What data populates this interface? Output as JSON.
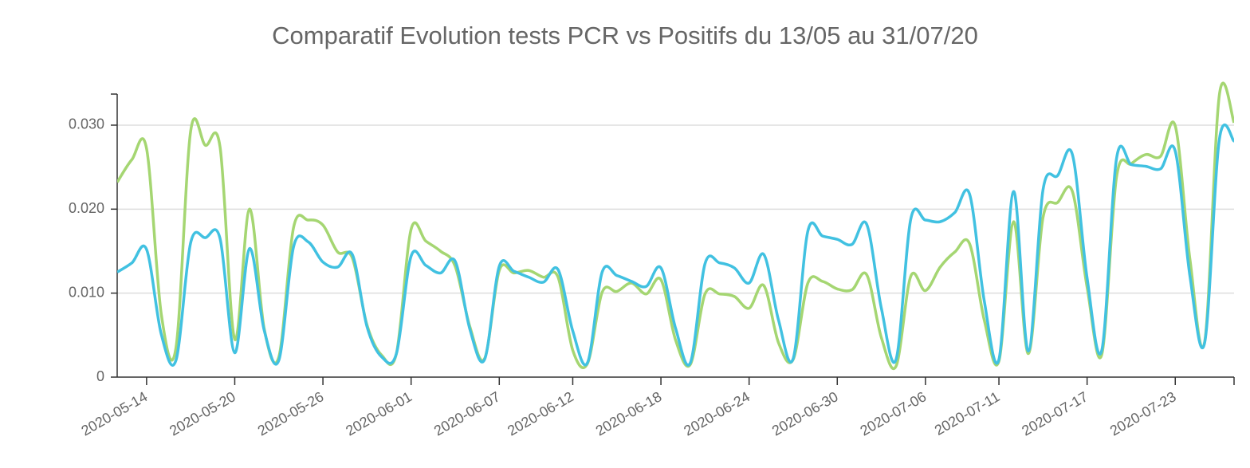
{
  "chart_data": {
    "type": "line",
    "title": "Comparatif Evolution tests PCR vs Positifs du 13/05 au 31/07/20",
    "x": [
      "2020-05-12",
      "2020-05-13",
      "2020-05-14",
      "2020-05-15",
      "2020-05-16",
      "2020-05-17",
      "2020-05-18",
      "2020-05-19",
      "2020-05-20",
      "2020-05-21",
      "2020-05-22",
      "2020-05-23",
      "2020-05-24",
      "2020-05-25",
      "2020-05-26",
      "2020-05-27",
      "2020-05-28",
      "2020-05-29",
      "2020-05-30",
      "2020-05-31",
      "2020-06-01",
      "2020-06-02",
      "2020-06-03",
      "2020-06-04",
      "2020-06-05",
      "2020-06-06",
      "2020-06-07",
      "2020-06-08",
      "2020-06-09",
      "2020-06-10",
      "2020-06-11",
      "2020-06-12",
      "2020-06-13",
      "2020-06-14",
      "2020-06-15",
      "2020-06-16",
      "2020-06-17",
      "2020-06-18",
      "2020-06-19",
      "2020-06-20",
      "2020-06-21",
      "2020-06-22",
      "2020-06-23",
      "2020-06-24",
      "2020-06-25",
      "2020-06-26",
      "2020-06-27",
      "2020-06-28",
      "2020-06-29",
      "2020-06-30",
      "2020-07-01",
      "2020-07-02",
      "2020-07-03",
      "2020-07-04",
      "2020-07-05",
      "2020-07-06",
      "2020-07-07",
      "2020-07-08",
      "2020-07-09",
      "2020-07-10",
      "2020-07-11",
      "2020-07-12",
      "2020-07-13",
      "2020-07-14",
      "2020-07-15",
      "2020-07-16",
      "2020-07-17",
      "2020-07-18",
      "2020-07-19",
      "2020-07-20",
      "2020-07-21",
      "2020-07-22",
      "2020-07-23",
      "2020-07-24",
      "2020-07-25",
      "2020-07-26",
      "2020-07-27"
    ],
    "series": [
      {
        "color": "#a5d672",
        "values": [
          0.0232,
          0.0259,
          0.0272,
          0.0075,
          0.0035,
          0.0293,
          0.0276,
          0.0274,
          0.0045,
          0.02,
          0.0058,
          0.0024,
          0.0178,
          0.0187,
          0.0181,
          0.0149,
          0.0142,
          0.0062,
          0.0026,
          0.0028,
          0.0176,
          0.0162,
          0.015,
          0.0132,
          0.006,
          0.0022,
          0.0127,
          0.0124,
          0.0127,
          0.0119,
          0.0119,
          0.0032,
          0.0016,
          0.0101,
          0.0102,
          0.0112,
          0.0099,
          0.0116,
          0.0044,
          0.0015,
          0.0099,
          0.0099,
          0.0096,
          0.0082,
          0.0109,
          0.0041,
          0.0021,
          0.0112,
          0.0114,
          0.0105,
          0.0104,
          0.0122,
          0.0047,
          0.0013,
          0.012,
          0.0103,
          0.0131,
          0.0149,
          0.0159,
          0.0068,
          0.0019,
          0.0185,
          0.0028,
          0.019,
          0.0208,
          0.0221,
          0.0107,
          0.0027,
          0.0238,
          0.0254,
          0.0265,
          0.0263,
          0.0299,
          0.014,
          0.0042,
          0.0336,
          0.0303
        ]
      },
      {
        "color": "#41c1e1",
        "values": [
          0.0125,
          0.0136,
          0.0152,
          0.0051,
          0.002,
          0.016,
          0.0166,
          0.0165,
          0.0029,
          0.0153,
          0.0056,
          0.002,
          0.0155,
          0.0161,
          0.0137,
          0.0131,
          0.0146,
          0.006,
          0.0024,
          0.0028,
          0.0144,
          0.0133,
          0.0124,
          0.0138,
          0.0057,
          0.0021,
          0.0132,
          0.0126,
          0.0119,
          0.0113,
          0.0128,
          0.0055,
          0.0017,
          0.0125,
          0.0121,
          0.0114,
          0.0108,
          0.013,
          0.0058,
          0.0017,
          0.0135,
          0.0136,
          0.013,
          0.0112,
          0.0146,
          0.0068,
          0.0022,
          0.0174,
          0.0168,
          0.0164,
          0.0158,
          0.0182,
          0.0082,
          0.0021,
          0.0188,
          0.0187,
          0.0185,
          0.0196,
          0.0218,
          0.0091,
          0.0021,
          0.0221,
          0.0031,
          0.0223,
          0.024,
          0.0265,
          0.0118,
          0.0032,
          0.026,
          0.0253,
          0.0251,
          0.0248,
          0.0269,
          0.012,
          0.0041,
          0.0283,
          0.0281
        ]
      }
    ],
    "xlim": [
      "2020-05-12",
      "2020-07-27"
    ],
    "xticks": [
      "2020-05-14",
      "2020-05-20",
      "2020-05-26",
      "2020-06-01",
      "2020-06-07",
      "2020-06-12",
      "2020-06-18",
      "2020-06-24",
      "2020-06-30",
      "2020-07-06",
      "2020-07-11",
      "2020-07-17",
      "2020-07-23"
    ],
    "ylim": [
      0,
      0.0337
    ],
    "yticks": [
      0,
      {
        "value": 0.01,
        "label": "0.010"
      },
      {
        "value": 0.02,
        "label": "0.020"
      },
      {
        "value": 0.03,
        "label": "0.030"
      }
    ],
    "grid": true
  }
}
